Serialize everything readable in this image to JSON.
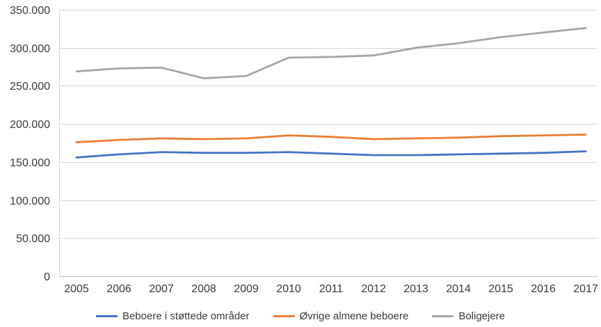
{
  "chart_data": {
    "type": "line",
    "title": "",
    "x_labels": [
      "2005",
      "2006",
      "2007",
      "2008",
      "2009",
      "2010",
      "2011",
      "2012",
      "2013",
      "2014",
      "2015",
      "2016",
      "2017"
    ],
    "series": [
      {
        "name": "Beboere i støttede områder",
        "color": "#4472C4",
        "values": [
          156000,
          160000,
          163000,
          162000,
          162000,
          163000,
          161000,
          159000,
          159000,
          160000,
          161000,
          162000,
          164000
        ]
      },
      {
        "name": "Øvrige almene beboere",
        "color": "#ED7D31",
        "values": [
          176000,
          179000,
          181000,
          180000,
          181000,
          185000,
          183000,
          180000,
          181000,
          182000,
          184000,
          185000,
          186000
        ]
      },
      {
        "name": "Boligejere",
        "color": "#A5A5A5",
        "values": [
          269000,
          273000,
          274000,
          260000,
          263000,
          287000,
          288000,
          290000,
          300000,
          306000,
          314000,
          320000,
          326000
        ]
      }
    ],
    "y_axis": {
      "min": 0,
      "max": 350000,
      "step": 50000,
      "tick_labels": [
        "0",
        "50.000",
        "100.000",
        "150.000",
        "200.000",
        "250.000",
        "300.000",
        "350.000"
      ]
    },
    "grid": "horizontal",
    "legend_position": "bottom"
  },
  "style": {
    "gridline_color": "#D6D6D6",
    "axis_line_color": "#BFBFBF",
    "tick_text_color": "#3a3a3a"
  }
}
